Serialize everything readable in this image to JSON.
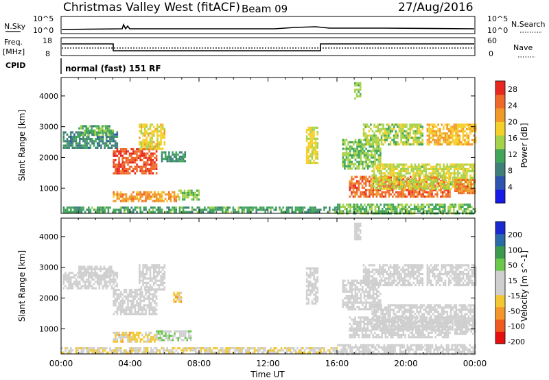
{
  "header": {
    "title": "Christmas Valley West (fitACF)",
    "beam": "Beam 09",
    "date": "27/Aug/2016"
  },
  "strip_labels": {
    "nsky": "N.Sky",
    "nsky_ticks": [
      "10^5",
      "10^0"
    ],
    "nsearch": "N.Search",
    "nsearch_ticks": [
      "10^5",
      "10^0"
    ],
    "freq": "Freq.",
    "freq_unit": "[MHz]",
    "freq_ticks": [
      "18",
      "8"
    ],
    "nave": "Nave",
    "nave_ticks": [
      "60",
      "0"
    ],
    "cpid": "CPID",
    "cpid_value": "normal (fast) 151 RF"
  },
  "chart_data": [
    {
      "type": "heatmap",
      "title": "",
      "ylabel": "Slant Range [km]",
      "ylim": [
        180,
        4600
      ],
      "yticks": [
        "1000",
        "2000",
        "3000",
        "4000"
      ],
      "colorbar_label": "Power [dB]",
      "colorbar_ticks": [
        "28",
        "24",
        "20",
        "16",
        "12",
        "8",
        "4"
      ],
      "colorbar_range": [
        0,
        30
      ],
      "colors": [
        "#1a1ae6",
        "#2d54b0",
        "#3f7f7a",
        "#41a65a",
        "#a6d24a",
        "#f5d02a",
        "#f29a28",
        "#ef6a2a",
        "#e8281e"
      ],
      "regions": [
        {
          "t": [
            0.1,
            3.3
          ],
          "r": [
            2300,
            2850
          ],
          "v": 9
        },
        {
          "t": [
            1.0,
            3.0
          ],
          "r": [
            2700,
            3050
          ],
          "v": 12
        },
        {
          "t": [
            3.0,
            5.5
          ],
          "r": [
            1500,
            2300
          ],
          "v": 26
        },
        {
          "t": [
            4.5,
            6.0
          ],
          "r": [
            2300,
            3100
          ],
          "v": 18
        },
        {
          "t": [
            5.8,
            7.2
          ],
          "r": [
            1900,
            2200
          ],
          "v": 10
        },
        {
          "t": [
            3.0,
            6.8
          ],
          "r": [
            550,
            900
          ],
          "v": 22
        },
        {
          "t": [
            6.8,
            8.0
          ],
          "r": [
            650,
            950
          ],
          "v": 14
        },
        {
          "t": [
            0.0,
            16.0
          ],
          "r": [
            200,
            400
          ],
          "v": 11
        },
        {
          "t": [
            14.2,
            14.9
          ],
          "r": [
            1800,
            3000
          ],
          "v": 17
        },
        {
          "t": [
            16.3,
            18.5
          ],
          "r": [
            1600,
            2600
          ],
          "v": 14
        },
        {
          "t": [
            16.7,
            22.5
          ],
          "r": [
            700,
            1400
          ],
          "v": 25
        },
        {
          "t": [
            18.0,
            24.0
          ],
          "r": [
            1000,
            1800
          ],
          "v": 16
        },
        {
          "t": [
            17.5,
            21.0
          ],
          "r": [
            2400,
            3100
          ],
          "v": 15
        },
        {
          "t": [
            21.2,
            24.0
          ],
          "r": [
            2400,
            3100
          ],
          "v": 20
        },
        {
          "t": [
            22.8,
            24.0
          ],
          "r": [
            800,
            1300
          ],
          "v": 24
        },
        {
          "t": [
            16.0,
            24.0
          ],
          "r": [
            200,
            500
          ],
          "v": 13
        },
        {
          "t": [
            17.0,
            17.4
          ],
          "r": [
            3900,
            4450
          ],
          "v": 14
        }
      ]
    },
    {
      "type": "heatmap",
      "title": "",
      "ylabel": "Slant Range [km]",
      "ylim": [
        180,
        4600
      ],
      "yticks": [
        "1000",
        "2000",
        "3000",
        "4000"
      ],
      "xlabel": "Time UT",
      "xticks": [
        "00:00",
        "04:00",
        "08:00",
        "12:00",
        "16:00",
        "20:00",
        "00:00"
      ],
      "xlim_hours": [
        0,
        24
      ],
      "colorbar_label": "Velocity [m s^-1]",
      "colorbar_ticks": [
        "200",
        "100",
        "50",
        "15",
        "-15",
        "-50",
        "-100",
        "-200"
      ],
      "colorbar_range": [
        -250,
        250
      ],
      "colors": [
        "#e60f0f",
        "#f05a1e",
        "#f5962a",
        "#f2c832",
        "#cfcfcf",
        "#cfcfcf",
        "#6ac84b",
        "#3a9a4e",
        "#2a6aa8",
        "#1a2ad0"
      ],
      "regions": [
        {
          "t": [
            0.1,
            3.3
          ],
          "r": [
            2300,
            2850
          ],
          "v": 0
        },
        {
          "t": [
            1.0,
            3.0
          ],
          "r": [
            2700,
            3050
          ],
          "v": 0
        },
        {
          "t": [
            3.0,
            5.5
          ],
          "r": [
            1500,
            2300
          ],
          "v": 0
        },
        {
          "t": [
            4.5,
            6.0
          ],
          "r": [
            2300,
            3100
          ],
          "v": 0
        },
        {
          "t": [
            6.5,
            7.0
          ],
          "r": [
            1900,
            2200
          ],
          "v": -80
        },
        {
          "t": [
            3.0,
            5.5
          ],
          "r": [
            550,
            900
          ],
          "v": -60
        },
        {
          "t": [
            5.5,
            7.5
          ],
          "r": [
            650,
            950
          ],
          "v": 40
        },
        {
          "t": [
            0.0,
            16.0
          ],
          "r": [
            200,
            400
          ],
          "v": -40
        },
        {
          "t": [
            14.2,
            14.9
          ],
          "r": [
            1800,
            3000
          ],
          "v": 0
        },
        {
          "t": [
            16.3,
            18.5
          ],
          "r": [
            1600,
            2600
          ],
          "v": 0
        },
        {
          "t": [
            16.7,
            22.5
          ],
          "r": [
            700,
            1400
          ],
          "v": 0
        },
        {
          "t": [
            18.0,
            24.0
          ],
          "r": [
            1000,
            1800
          ],
          "v": 0
        },
        {
          "t": [
            17.5,
            21.0
          ],
          "r": [
            2400,
            3100
          ],
          "v": 0
        },
        {
          "t": [
            21.2,
            24.0
          ],
          "r": [
            2400,
            3100
          ],
          "v": 0
        },
        {
          "t": [
            22.8,
            24.0
          ],
          "r": [
            800,
            1300
          ],
          "v": 0
        },
        {
          "t": [
            16.0,
            24.0
          ],
          "r": [
            200,
            500
          ],
          "v": 0
        },
        {
          "t": [
            17.0,
            17.4
          ],
          "r": [
            3900,
            4450
          ],
          "v": 0
        }
      ]
    }
  ]
}
